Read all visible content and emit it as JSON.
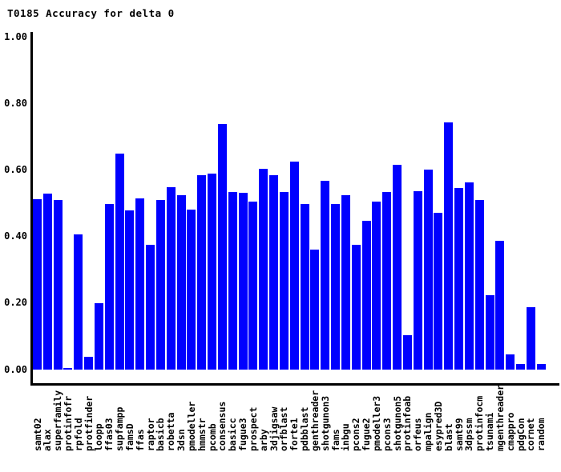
{
  "chart_data": {
    "type": "bar",
    "title": "T0185 Accuracy for delta 0",
    "xlabel": "",
    "ylabel": "",
    "ylim": [
      0.0,
      1.0
    ],
    "grid": false,
    "legend": null,
    "bar_color": "#0000FF",
    "axis_color": "#000000",
    "yticks": [
      {
        "label": "0.00",
        "value": 0.0
      },
      {
        "label": "0.20",
        "value": 0.2
      },
      {
        "label": "0.40",
        "value": 0.4
      },
      {
        "label": "0.60",
        "value": 0.6
      },
      {
        "label": "0.80",
        "value": 0.8
      },
      {
        "label": "1.00",
        "value": 1.0
      }
    ],
    "categories": [
      "samt02",
      "alax",
      "superfamily",
      "protinfofr",
      "rpfold",
      "protfinder",
      "loopp",
      "ffas03",
      "supfampp",
      "famsD",
      "ffas",
      "raptor",
      "basicb",
      "robetta",
      "3dsn",
      "pmodeller",
      "hmmstr",
      "pcomb",
      "consensus",
      "basicc",
      "fugue3",
      "prospect",
      "arby",
      "3djigsaw",
      "orfblast",
      "forte1",
      "pdbblast",
      "genthreader",
      "shotgunon3",
      "fams",
      "inbgu",
      "pcons2",
      "fugue2",
      "pmodeller3",
      "pcons3",
      "shotgunon5",
      "protinfoab",
      "orfeus",
      "mpalign",
      "esypred3D",
      "blast",
      "samt99",
      "3dpssm",
      "protinfocm",
      "tsunami",
      "mgenthreader",
      "cmappro",
      "pdgCon",
      "cornet",
      "random"
    ],
    "values": [
      0.511,
      0.53,
      0.51,
      0.006,
      0.406,
      0.039,
      0.199,
      0.498,
      0.649,
      0.479,
      0.515,
      0.376,
      0.51,
      0.547,
      0.523,
      0.481,
      0.584,
      0.589,
      0.739,
      0.534,
      0.531,
      0.506,
      0.603,
      0.585,
      0.534,
      0.624,
      0.498,
      0.361,
      0.567,
      0.498,
      0.523,
      0.376,
      0.447,
      0.504,
      0.534,
      0.615,
      0.103,
      0.535,
      0.602,
      0.472,
      0.742,
      0.546,
      0.562,
      0.509,
      0.224,
      0.388,
      0.046,
      0.016,
      0.188,
      0.016
    ]
  }
}
